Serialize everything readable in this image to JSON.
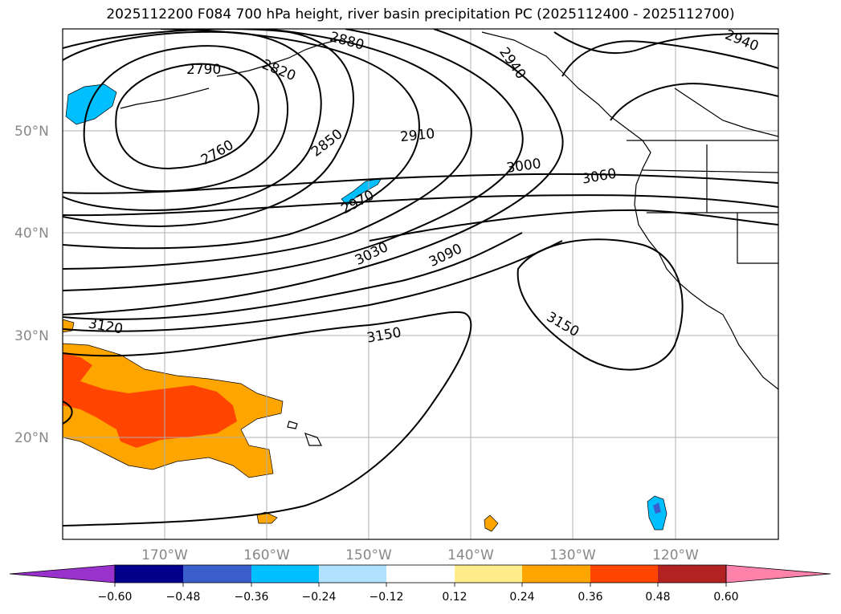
{
  "title": "2025112200 F084 700 hPa height, river basin precipitation PC (2025112400 - 2025112700)",
  "latitude_labels": [
    "50°N",
    "40°N",
    "30°N",
    "20°N"
  ],
  "longitude_labels": [
    "170°W",
    "160°W",
    "150°W",
    "140°W",
    "130°W",
    "120°W"
  ],
  "contour_labels": [
    "2790",
    "2820",
    "2880",
    "2940",
    "2940",
    "2760",
    "2850",
    "2910",
    "3000",
    "3060",
    "2970",
    "3030",
    "3090",
    "3120",
    "3150",
    "3150"
  ],
  "colorbar": {
    "tick_labels": [
      "−0.60",
      "−0.48",
      "−0.36",
      "−0.24",
      "−0.12",
      "0.12",
      "0.24",
      "0.36",
      "0.48",
      "0.60"
    ],
    "colors": [
      "#9932cc",
      "#00008b",
      "#3a5fcd",
      "#00bfff",
      "#b0e2ff",
      "#ffffff",
      "#ffec8b",
      "#ffa500",
      "#ff4500",
      "#b22222",
      "#ff82ab",
      "#ff82ab"
    ]
  },
  "colors": {
    "contour": "#000000",
    "grid": "#b0b0b0",
    "axis_text": "#888888"
  }
}
